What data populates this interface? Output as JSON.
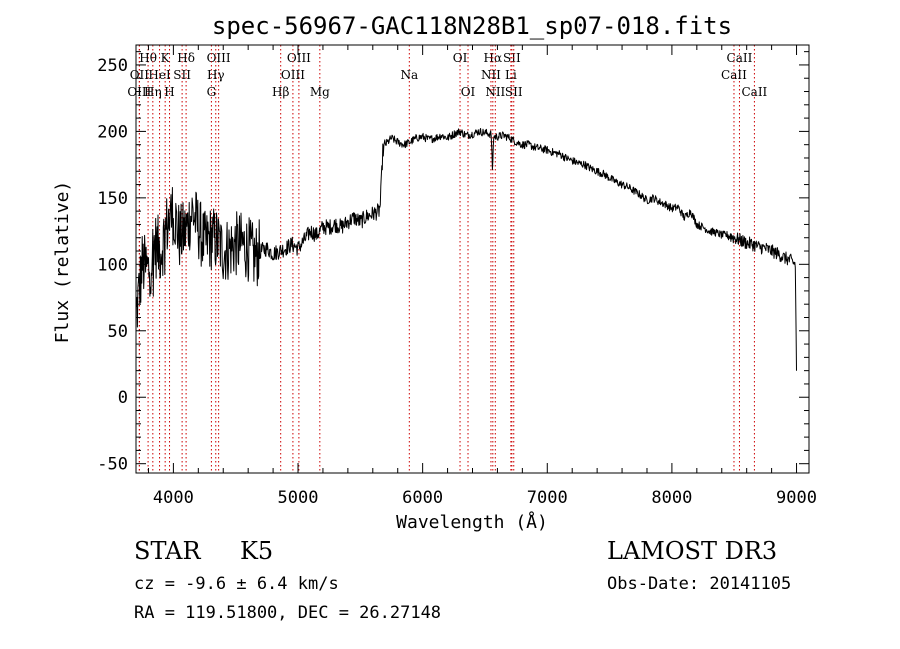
{
  "chart_data": {
    "type": "line",
    "title": "spec-56967-GAC118N28B1_sp07-018.fits",
    "xlabel": "Wavelength (Å)",
    "ylabel": "Flux (relative)",
    "xlim": [
      3700,
      9100
    ],
    "ylim": [
      -57,
      265
    ],
    "xticks": [
      4000,
      5000,
      6000,
      7000,
      8000,
      9000
    ],
    "yticks": [
      -50,
      0,
      50,
      100,
      150,
      200,
      250
    ],
    "spectrum": {
      "x": [
        3700,
        3750,
        3800,
        3850,
        3900,
        3950,
        4000,
        4050,
        4100,
        4150,
        4200,
        4250,
        4300,
        4350,
        4400,
        4450,
        4500,
        4550,
        4600,
        4650,
        4700,
        4750,
        4800,
        4850,
        4900,
        4950,
        5000,
        5050,
        5100,
        5150,
        5200,
        5250,
        5300,
        5350,
        5400,
        5450,
        5500,
        5550,
        5600,
        5650,
        5660,
        5680,
        5700,
        5750,
        5800,
        5850,
        5900,
        5950,
        6000,
        6050,
        6100,
        6150,
        6200,
        6250,
        6300,
        6350,
        6400,
        6450,
        6500,
        6550,
        6560,
        6570,
        6600,
        6650,
        6700,
        6750,
        6800,
        6850,
        6900,
        6950,
        7000,
        7050,
        7100,
        7150,
        7200,
        7250,
        7300,
        7350,
        7400,
        7450,
        7500,
        7550,
        7600,
        7650,
        7700,
        7750,
        7800,
        7850,
        7900,
        7950,
        8000,
        8050,
        8100,
        8150,
        8200,
        8250,
        8300,
        8350,
        8400,
        8450,
        8500,
        8550,
        8600,
        8650,
        8700,
        8750,
        8800,
        8850,
        8900,
        8950,
        8990,
        9000
      ],
      "y": [
        60,
        100,
        95,
        115,
        110,
        130,
        140,
        120,
        125,
        140,
        128,
        115,
        120,
        118,
        110,
        112,
        115,
        115,
        112,
        105,
        110,
        112,
        108,
        110,
        112,
        115,
        112,
        118,
        125,
        122,
        128,
        128,
        130,
        128,
        132,
        135,
        132,
        136,
        138,
        140,
        145,
        185,
        190,
        195,
        192,
        190,
        192,
        195,
        196,
        194,
        195,
        197,
        195,
        198,
        200,
        197,
        198,
        200,
        199,
        198,
        172,
        196,
        196,
        197,
        195,
        192,
        190,
        190,
        188,
        187,
        186,
        184,
        183,
        180,
        178,
        176,
        175,
        172,
        170,
        168,
        165,
        162,
        160,
        158,
        155,
        152,
        148,
        150,
        147,
        145,
        142,
        143,
        135,
        140,
        130,
        128,
        125,
        124,
        122,
        122,
        120,
        118,
        116,
        115,
        113,
        112,
        110,
        108,
        105,
        103,
        100,
        20
      ]
    },
    "line_markers": [
      {
        "label": "Hθ",
        "x": 3797,
        "row": 1
      },
      {
        "label": "OII",
        "x": 3727,
        "row": 2
      },
      {
        "label": "OIII",
        "x": 3727,
        "row": 3
      },
      {
        "label": "K",
        "x": 3934,
        "row": 1
      },
      {
        "label": "HeI",
        "x": 3889,
        "row": 2
      },
      {
        "label": "Hη",
        "x": 3835,
        "row": 3
      },
      {
        "label": "SII",
        "x": 4070,
        "row": 2
      },
      {
        "label": "H",
        "x": 3969,
        "row": 3
      },
      {
        "label": "Hδ",
        "x": 4102,
        "row": 1
      },
      {
        "label": "OIII",
        "x": 4363,
        "row": 1
      },
      {
        "label": "Hγ",
        "x": 4340,
        "row": 2
      },
      {
        "label": "G",
        "x": 4305,
        "row": 3
      },
      {
        "label": "OIII",
        "x": 5007,
        "row": 1
      },
      {
        "label": "OIII",
        "x": 4959,
        "row": 2
      },
      {
        "label": "Hβ",
        "x": 4861,
        "row": 3
      },
      {
        "label": "Mg",
        "x": 5175,
        "row": 3
      },
      {
        "label": "Na",
        "x": 5893,
        "row": 2
      },
      {
        "label": "OI",
        "x": 6300,
        "row": 1
      },
      {
        "label": "OI",
        "x": 6364,
        "row": 3
      },
      {
        "label": "Hα",
        "x": 6563,
        "row": 1
      },
      {
        "label": "SII",
        "x": 6716,
        "row": 1
      },
      {
        "label": "NII",
        "x": 6548,
        "row": 2
      },
      {
        "label": "Li",
        "x": 6708,
        "row": 2
      },
      {
        "label": "NII",
        "x": 6583,
        "row": 3
      },
      {
        "label": "SII",
        "x": 6731,
        "row": 3
      },
      {
        "label": "CaII",
        "x": 8542,
        "row": 1
      },
      {
        "label": "CaII",
        "x": 8498,
        "row": 2
      },
      {
        "label": "CaII",
        "x": 8662,
        "row": 3
      }
    ]
  },
  "info": {
    "object_class": "STAR",
    "subclass": "K5",
    "survey": "LAMOST DR3",
    "cz": "cz = -9.6 ± 6.4 km/s",
    "obs_date": "Obs-Date: 20141105",
    "radec": "RA = 119.51800, DEC =  26.27148"
  }
}
